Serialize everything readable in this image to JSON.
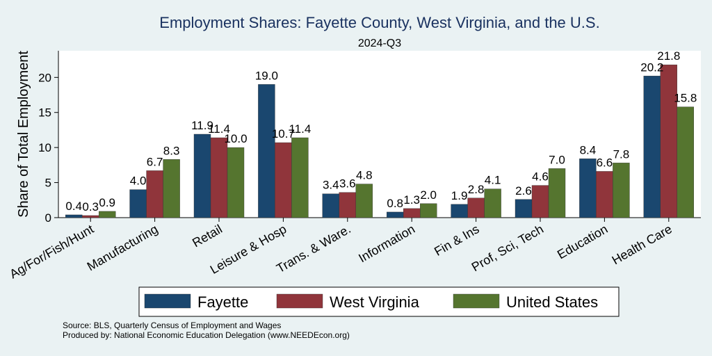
{
  "chart_data": {
    "type": "bar",
    "title": "Employment Shares: Fayette County, West Virginia, and the U.S.",
    "subtitle": "2024-Q3",
    "ylabel": "Share of Total Employment",
    "xlabel": "",
    "ylim": [
      0,
      23.8
    ],
    "yticks": [
      0,
      5,
      10,
      15,
      20
    ],
    "grid": false,
    "legend_position": "bottom",
    "categories": [
      "Ag/For/Fish/Hunt",
      "Manufacturing",
      "Retail",
      "Leisure & Hosp",
      "Trans. & Ware.",
      "Information",
      "Fin & Ins",
      "Prof, Sci, Tech",
      "Education",
      "Health Care"
    ],
    "series": [
      {
        "name": "Fayette",
        "color": "#1a476f",
        "values": [
          0.4,
          4.0,
          11.9,
          19.0,
          3.4,
          0.8,
          1.9,
          2.6,
          8.4,
          20.2
        ],
        "labels": [
          "0.4",
          "4.0",
          "11.9",
          "19.0",
          "3.4",
          "0.8",
          "1.9",
          "2.6",
          "8.4",
          "20.2"
        ]
      },
      {
        "name": "West Virginia",
        "color": "#90353b",
        "values": [
          0.3,
          6.7,
          11.4,
          10.7,
          3.6,
          1.3,
          2.8,
          4.6,
          6.6,
          21.8
        ],
        "labels": [
          "0.3",
          "6.7",
          "11.4",
          "10.7",
          "3.6",
          "1.3",
          "2.8",
          "4.6",
          "6.6",
          "21.8"
        ]
      },
      {
        "name": "United States",
        "color": "#55752f",
        "values": [
          0.9,
          8.3,
          10.0,
          11.4,
          4.8,
          2.0,
          4.1,
          7.0,
          7.8,
          15.8
        ],
        "labels": [
          "0.9",
          "8.3",
          "10.0",
          "11.4",
          "4.8",
          "2.0",
          "4.1",
          "7.0",
          "7.8",
          "15.8"
        ]
      }
    ],
    "notes": [
      "Source: BLS, Quarterly Census of Employment and Wages",
      "Produced by: National Economic Education Delegation (www.NEEDEcon.org)"
    ]
  }
}
